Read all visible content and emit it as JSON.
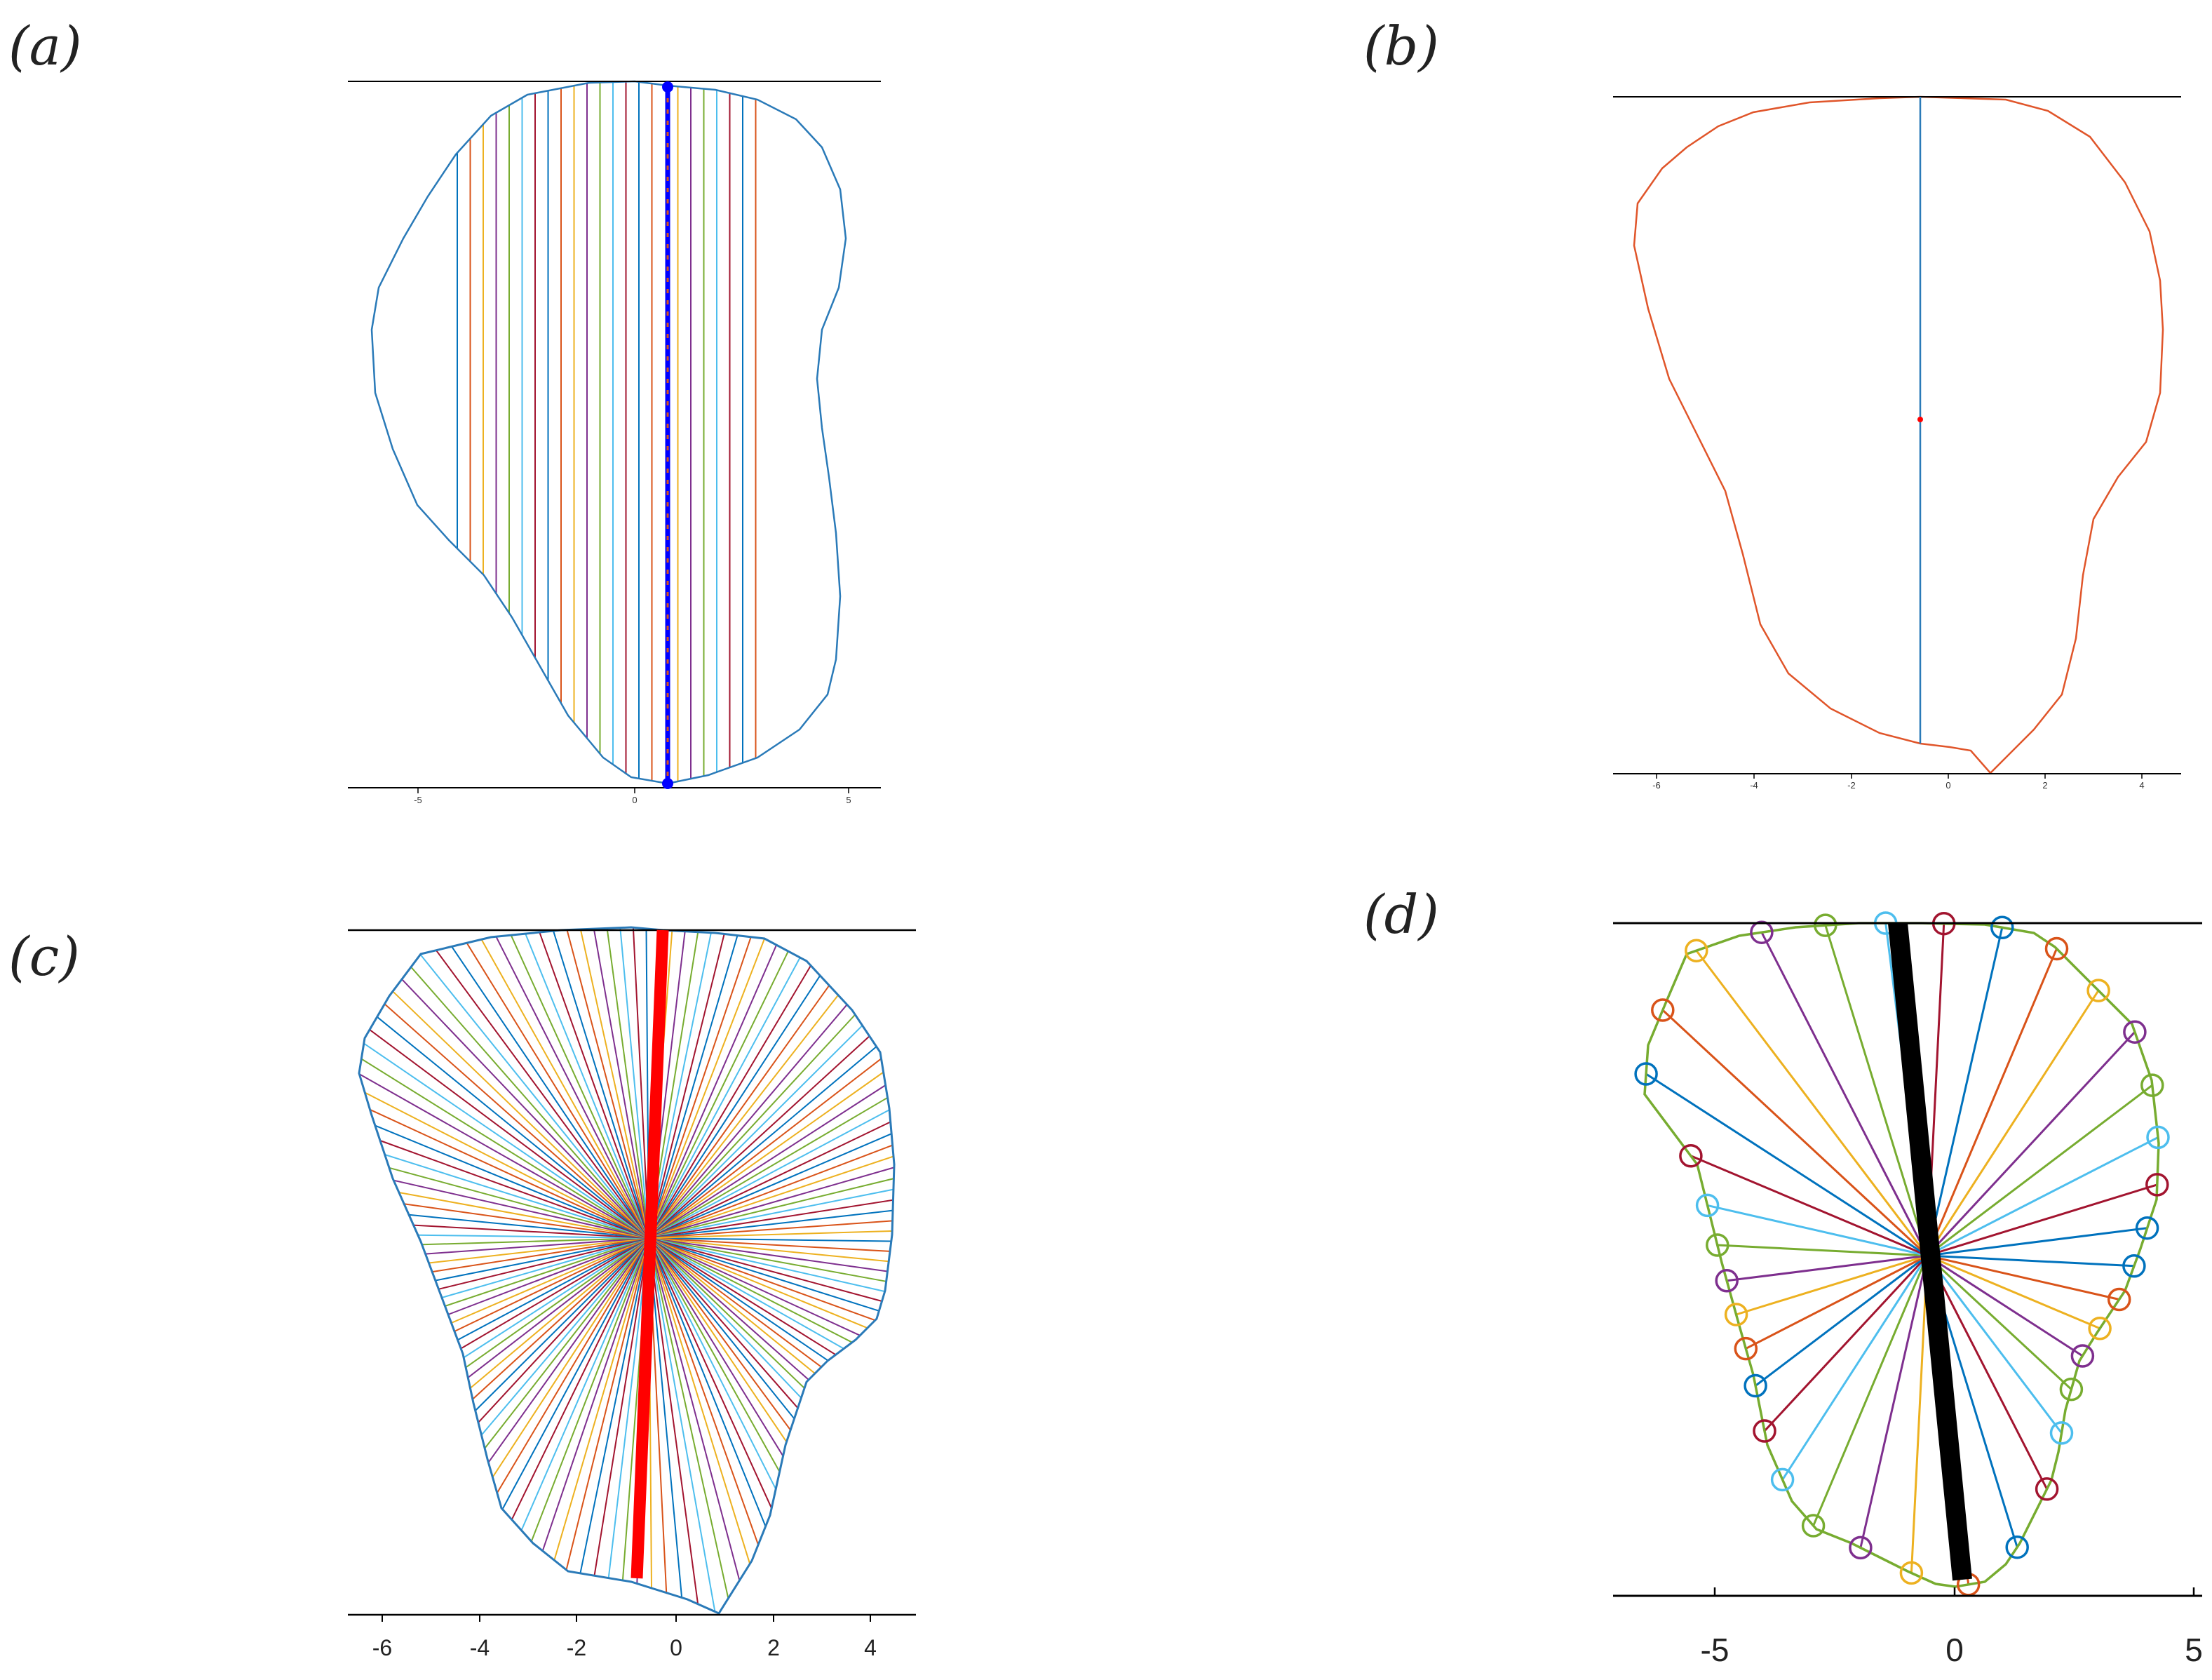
{
  "panels": [
    {
      "label": "(a)",
      "tick_labels": [
        "-5",
        "0",
        "5"
      ]
    },
    {
      "label": "(b)",
      "tick_labels": [
        "-6",
        "-4",
        "-2",
        "0",
        "2",
        "4"
      ]
    },
    {
      "label": "(c)",
      "tick_labels": [
        "-6",
        "-4",
        "-2",
        "0",
        "2",
        "4"
      ]
    },
    {
      "label": "(d)",
      "tick_labels": [
        "-5",
        "0",
        "5"
      ]
    }
  ],
  "colors": {
    "outline_blue": "#2a7ab8",
    "outline_orange": "#e0552a",
    "outline_green": "#77ac30",
    "axis": "#000000",
    "highlight_red": "#ff0000",
    "highlight_black": "#000000",
    "highlight_blue": "#0000ff",
    "line_palette": [
      "#0072bd",
      "#d95319",
      "#edb120",
      "#7e2f8e",
      "#77ac30",
      "#4dbeee",
      "#a2142f"
    ]
  },
  "icons": {
    "endpoint_marker": "filled-circle",
    "vertex_marker": "hollow-circle"
  }
}
